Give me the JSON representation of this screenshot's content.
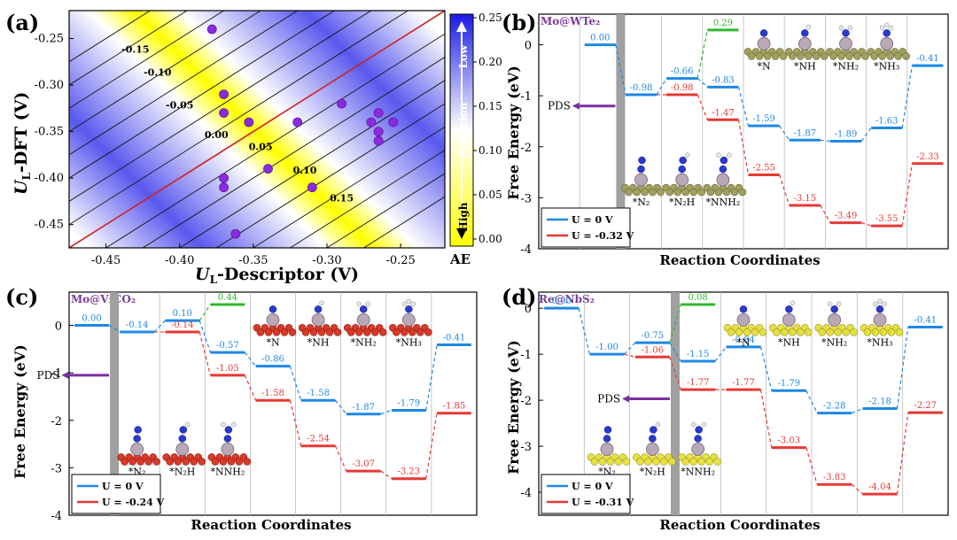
{
  "panel_a": {
    "label": "(a)",
    "xlabel_main": "U",
    "xlabel_sub": "L",
    "xlabel_rest": "-Descriptor (V)",
    "ylabel_main": "U",
    "ylabel_sub": "L",
    "ylabel_rest": "-DFT (V)",
    "colorbar_low": "Low",
    "colorbar_high": "High",
    "colorbar_mid": "Precision",
    "colorbar_label": "AE",
    "colors": {
      "low": "#2a2ae0",
      "high": "#ffff00",
      "parity": "#cc2222",
      "point": "#8a2be2"
    }
  },
  "panel_b": {
    "label": "(b)",
    "system": "Mo@WTe₂",
    "pds": "PDS",
    "legend": [
      "U = 0 V",
      "U = -0.32 V"
    ]
  },
  "panel_c": {
    "label": "(c)",
    "system": "Mo@V₂CO₂",
    "pds": "PDS",
    "legend": [
      "U = 0 V",
      "U = -0.24 V"
    ]
  },
  "panel_d": {
    "label": "(d)",
    "system": "Re@NbS₂",
    "pds": "PDS",
    "legend": [
      "U = 0 V",
      "U = -0.31 V"
    ]
  },
  "chart_data": [
    {
      "panel": "a",
      "type": "scatter",
      "xlabel": "UL-Descriptor (V)",
      "ylabel": "UL-DFT (V)",
      "xlim": [
        -0.475,
        -0.22
      ],
      "ylim": [
        -0.475,
        -0.22
      ],
      "xticks": [
        "-0.45",
        "-0.40",
        "-0.35",
        "-0.30",
        "-0.25"
      ],
      "yticks": [
        "-0.25",
        "-0.30",
        "-0.35",
        "-0.40",
        "-0.45"
      ],
      "contour_labels": [
        "-0.15",
        "-0.10",
        "-0.05",
        "0.00",
        "0.05",
        "0.10",
        "0.15"
      ],
      "contour_levels": [
        -0.15,
        -0.1,
        -0.05,
        0.0,
        0.05,
        0.1,
        0.15
      ],
      "colorbar_ticks": [
        "0.25",
        "0.20",
        "0.15",
        "0.10",
        "0.05",
        "0.00"
      ],
      "colorbar_range": [
        0.0,
        0.25
      ],
      "points": [
        [
          -0.378,
          -0.24
        ],
        [
          -0.37,
          -0.31
        ],
        [
          -0.37,
          -0.33
        ],
        [
          -0.353,
          -0.34
        ],
        [
          -0.32,
          -0.34
        ],
        [
          -0.29,
          -0.32
        ],
        [
          -0.265,
          -0.33
        ],
        [
          -0.27,
          -0.34
        ],
        [
          -0.255,
          -0.34
        ],
        [
          -0.265,
          -0.35
        ],
        [
          -0.265,
          -0.36
        ],
        [
          -0.34,
          -0.39
        ],
        [
          -0.37,
          -0.4
        ],
        [
          -0.37,
          -0.41
        ],
        [
          -0.31,
          -0.41
        ],
        [
          -0.362,
          -0.46
        ]
      ]
    },
    {
      "panel": "b",
      "type": "line",
      "xlabel": "Reaction Coordinates",
      "ylabel": "Free Energy (eV)",
      "ylim": [
        -4,
        0.6
      ],
      "yticks": [
        "0",
        "-1",
        "-2",
        "-3",
        "-4"
      ],
      "steps": 10,
      "barrier_after_step": 2,
      "pds_y": -1.2,
      "species": [
        {
          "name": "*N₂",
          "slot": 1,
          "row": "bottom"
        },
        {
          "name": "*N₂H",
          "slot": 2,
          "row": "bottom"
        },
        {
          "name": "*NNH₂",
          "slot": 3,
          "row": "bottom"
        },
        {
          "name": "*N",
          "slot": 4,
          "row": "top"
        },
        {
          "name": "*NH",
          "slot": 5,
          "row": "top"
        },
        {
          "name": "*NH₂",
          "slot": 6,
          "row": "top"
        },
        {
          "name": "*NH₃",
          "slot": 7,
          "row": "top"
        }
      ],
      "series": [
        {
          "name": "U = 0 V",
          "color": "#1e88e5",
          "values": [
            0.0,
            -0.98,
            -0.66,
            -0.83,
            -1.59,
            -1.87,
            -1.89,
            -1.63,
            -0.41
          ],
          "labels": [
            "0.00",
            "-0.98",
            "-0.66",
            "-0.83",
            "-1.59",
            "-1.87",
            "-1.89",
            "-1.63",
            "-0.41"
          ]
        },
        {
          "name": "U = -0.32 V",
          "color": "#e53935",
          "values": [
            null,
            null,
            -0.98,
            -1.47,
            -2.55,
            -3.15,
            -3.49,
            -3.55,
            -2.33
          ],
          "labels": [
            "",
            "",
            "-0.98",
            "-1.47",
            "-2.55",
            "-3.15",
            "-3.49",
            "-3.55",
            "-2.33"
          ]
        },
        {
          "name": "branch",
          "color": "#2eb82e",
          "values": [
            null,
            null,
            null,
            0.29,
            null,
            null,
            null,
            null,
            null
          ],
          "labels": [
            "",
            "",
            "",
            "0.29",
            "",
            "",
            "",
            "",
            ""
          ],
          "from": 2
        }
      ]
    },
    {
      "panel": "c",
      "type": "line",
      "xlabel": "Reaction Coordinates",
      "ylabel": "Free Energy (eV)",
      "ylim": [
        -4,
        0.7
      ],
      "yticks": [
        "0",
        "-1",
        "-2",
        "-3",
        "-4"
      ],
      "steps": 9,
      "barrier_after_step": 1,
      "pds_y": -1.05,
      "species": [
        {
          "name": "*N₂",
          "slot": 1,
          "row": "bottom"
        },
        {
          "name": "*N₂H",
          "slot": 2,
          "row": "bottom"
        },
        {
          "name": "*NNH₂",
          "slot": 3,
          "row": "bottom"
        },
        {
          "name": "*N",
          "slot": 4,
          "row": "top"
        },
        {
          "name": "*NH",
          "slot": 5,
          "row": "top"
        },
        {
          "name": "*NH₂",
          "slot": 6,
          "row": "top"
        },
        {
          "name": "*NH₃",
          "slot": 7,
          "row": "top"
        }
      ],
      "series": [
        {
          "name": "U = 0 V",
          "color": "#1e88e5",
          "values": [
            0.0,
            -0.14,
            0.1,
            -0.57,
            -0.86,
            -1.58,
            -1.87,
            -1.79,
            -0.41
          ],
          "labels": [
            "0.00",
            "-0.14",
            "0.10",
            "-0.57",
            "-0.86",
            "-1.58",
            "-1.87",
            "-1.79",
            "-0.41"
          ]
        },
        {
          "name": "U = -0.24 V",
          "color": "#e53935",
          "values": [
            null,
            null,
            -0.14,
            -1.05,
            -1.58,
            -2.54,
            -3.07,
            -3.23,
            -1.85
          ],
          "labels": [
            "",
            "",
            "-0.14",
            "-1.05",
            "-1.58",
            "-2.54",
            "-3.07",
            "-3.23",
            "-1.85"
          ]
        },
        {
          "name": "branch",
          "color": "#2eb82e",
          "values": [
            null,
            null,
            null,
            0.44,
            null,
            null,
            null,
            null,
            null
          ],
          "labels": [
            "",
            "",
            "",
            "0.44",
            "",
            "",
            "",
            "",
            ""
          ],
          "from": 2
        }
      ]
    },
    {
      "panel": "d",
      "type": "line",
      "xlabel": "Reaction Coordinates",
      "ylabel": "Free Energy (eV)",
      "ylim": [
        -4.5,
        0.35
      ],
      "yticks": [
        "0",
        "-1",
        "-2",
        "-3",
        "-4"
      ],
      "steps": 9,
      "barrier_after_step": 3,
      "pds_y": -1.97,
      "species": [
        {
          "name": "*N₂",
          "slot": 1,
          "row": "bottom"
        },
        {
          "name": "*N₂H",
          "slot": 2,
          "row": "bottom"
        },
        {
          "name": "*NNH₂",
          "slot": 3,
          "row": "bottom"
        },
        {
          "name": "*N",
          "slot": 4,
          "row": "top"
        },
        {
          "name": "*NH",
          "slot": 5,
          "row": "top"
        },
        {
          "name": "*NH₂",
          "slot": 6,
          "row": "top"
        },
        {
          "name": "*NH₃",
          "slot": 7,
          "row": "top"
        }
      ],
      "series": [
        {
          "name": "U = 0 V",
          "color": "#1e88e5",
          "values": [
            0.0,
            -1.0,
            -0.75,
            -1.15,
            -0.84,
            -1.79,
            -2.28,
            -2.18,
            -0.41
          ],
          "labels": [
            "0.00",
            "-1.00",
            "-0.75",
            "-1.15",
            "-0.84",
            "-1.79",
            "-2.28",
            "-2.18",
            "-0.41"
          ]
        },
        {
          "name": "U = -0.31 V",
          "color": "#e53935",
          "values": [
            null,
            null,
            -1.06,
            -1.77,
            -1.77,
            -3.03,
            -3.83,
            -4.04,
            -2.27
          ],
          "labels": [
            "",
            "",
            "-1.06",
            "-1.77",
            "-1.77",
            "-3.03",
            "-3.83",
            "-4.04",
            "-2.27"
          ]
        },
        {
          "name": "branch",
          "color": "#2eb82e",
          "values": [
            null,
            null,
            null,
            0.08,
            null,
            null,
            null,
            null,
            null
          ],
          "labels": [
            "",
            "",
            "",
            "0.08",
            "",
            "",
            "",
            "",
            ""
          ],
          "from": 2
        }
      ]
    }
  ]
}
